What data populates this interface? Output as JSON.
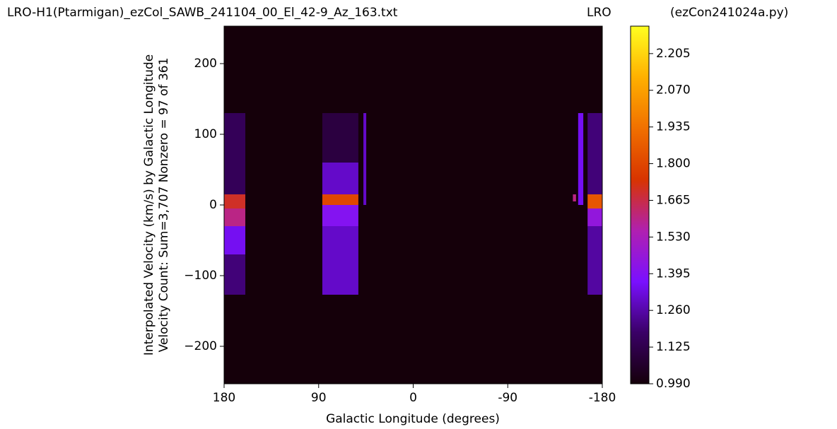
{
  "chart_data": {
    "type": "heatmap",
    "title": "LRO-H1(Ptarmigan)_ezCol_SAWB_241104_00_El_42-9_Az_163.txt",
    "title_center": "LRO",
    "title_right": "(ezCon241024a.py)",
    "ylabel": [
      "Interpolated Velocity (km/s) by Galactic Longitude",
      "Velocity Count: Sum=3,707 Nonzero = 97 of 361"
    ],
    "xlabel": "Galactic Longitude (degrees)",
    "xlim": [
      180,
      -180
    ],
    "xticks": [
      180,
      90,
      0,
      -90,
      -180
    ],
    "ylim": [
      -253,
      253
    ],
    "yticks": [
      {
        "value": -200,
        "label": "−200"
      },
      {
        "value": -100,
        "label": "−100"
      },
      0,
      100,
      200
    ],
    "background": 0.99,
    "clim": [
      0.99,
      2.306
    ],
    "cticks": [
      {
        "value": 0.99,
        "label": "0.990"
      },
      1.125,
      {
        "value": 1.26,
        "label": "1.260"
      },
      1.395,
      {
        "value": 1.53,
        "label": "1.530"
      },
      1.665,
      {
        "value": 1.8,
        "label": "1.800"
      },
      1.935,
      {
        "value": 2.07,
        "label": "2.070"
      },
      2.205
    ],
    "colormap": [
      "#15000a",
      "#3a0066",
      "#7a10ff",
      "#b020b0",
      "#d83400",
      "#f07000",
      "#ffb000",
      "#ffff20"
    ],
    "cells": [
      {
        "x": [
          180,
          159.8
        ],
        "y": [
          130,
          15
        ],
        "value": 1.15
      },
      {
        "x": [
          180,
          159.8
        ],
        "y": [
          15,
          -5
        ],
        "value": 1.7
      },
      {
        "x": [
          180,
          159.8
        ],
        "y": [
          -5,
          -30
        ],
        "value": 1.6
      },
      {
        "x": [
          180,
          159.8
        ],
        "y": [
          -30,
          -70
        ],
        "value": 1.35
      },
      {
        "x": [
          180,
          159.8
        ],
        "y": [
          -70,
          -127
        ],
        "value": 1.2
      },
      {
        "x": [
          86.5,
          52.2
        ],
        "y": [
          130,
          60
        ],
        "value": 1.1
      },
      {
        "x": [
          86.5,
          52.2
        ],
        "y": [
          60,
          15
        ],
        "value": 1.3
      },
      {
        "x": [
          86.5,
          52.2
        ],
        "y": [
          15,
          0
        ],
        "value": 1.8
      },
      {
        "x": [
          86.5,
          52.2
        ],
        "y": [
          0,
          -30
        ],
        "value": 1.4
      },
      {
        "x": [
          86.5,
          52.2
        ],
        "y": [
          -30,
          -127
        ],
        "value": 1.3
      },
      {
        "x": [
          47.4,
          44.7
        ],
        "y": [
          130,
          0
        ],
        "value": 1.3
      },
      {
        "x": [
          -152,
          -155
        ],
        "y": [
          15,
          5
        ],
        "value": 1.6
      },
      {
        "x": [
          -157,
          -161.9
        ],
        "y": [
          130,
          0
        ],
        "value": 1.35
      },
      {
        "x": [
          -166,
          -180
        ],
        "y": [
          130,
          15
        ],
        "value": 1.2
      },
      {
        "x": [
          -166,
          -180
        ],
        "y": [
          15,
          -5
        ],
        "value": 1.85
      },
      {
        "x": [
          -166,
          -180
        ],
        "y": [
          -5,
          -30
        ],
        "value": 1.45
      },
      {
        "x": [
          -166,
          -180
        ],
        "y": [
          -30,
          -127
        ],
        "value": 1.25
      }
    ]
  }
}
